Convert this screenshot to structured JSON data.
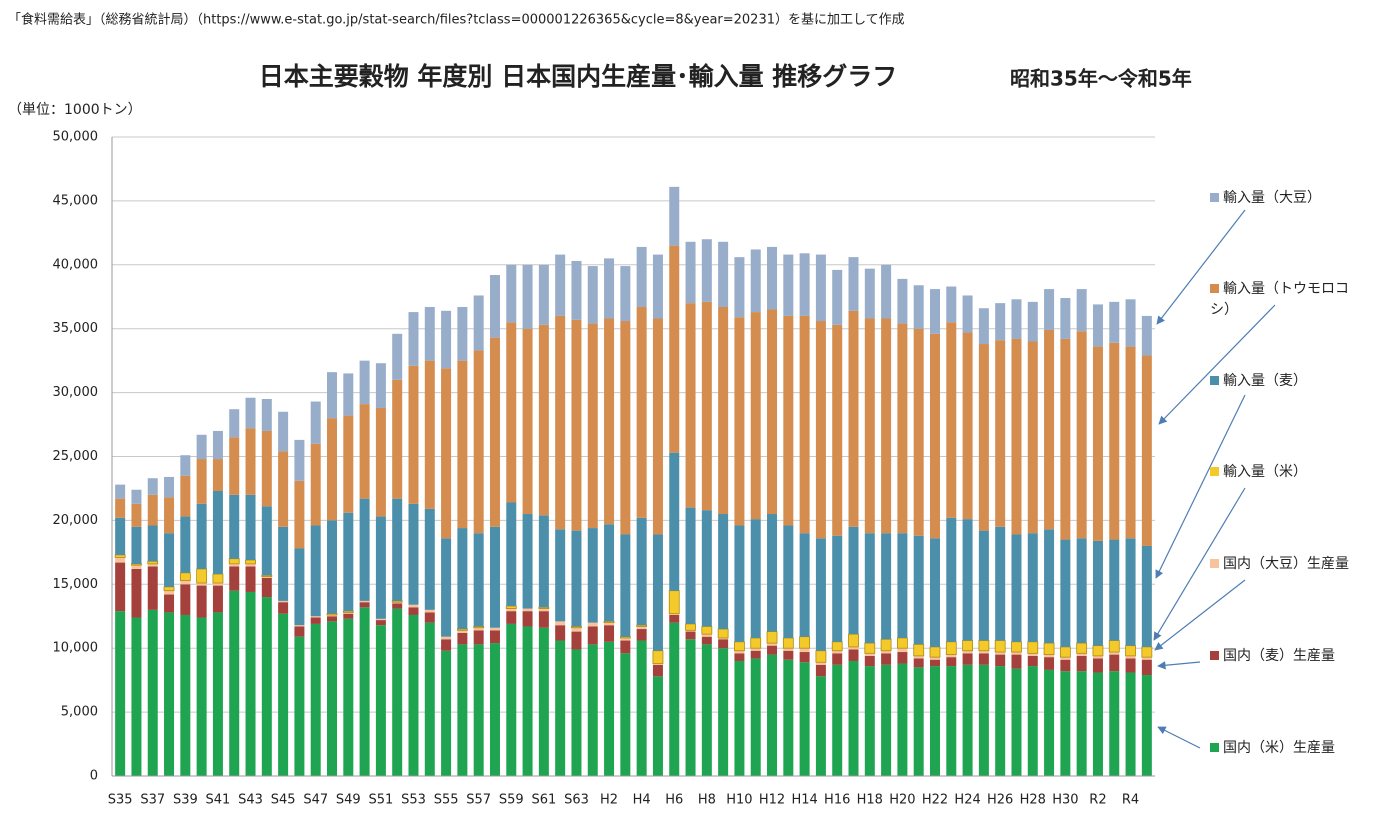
{
  "source": "「食料需給表」（総務省統計局）（https://www.e-stat.go.jp/stat-search/files?tclass=000001226365&cycle=8&year=20231）を基に加工して作成",
  "chart_data": {
    "type": "stacked-bar",
    "title": "日本主要穀物 年度別 日本国内生産量･輸入量 推移グラフ",
    "subtitle": "昭和35年～令和5年",
    "y_label": "（単位：1000トン）",
    "categories": [
      "S35",
      null,
      "S37",
      null,
      "S39",
      null,
      "S41",
      null,
      "S43",
      null,
      "S45",
      null,
      "S47",
      null,
      "S49",
      null,
      "S51",
      null,
      "S53",
      null,
      "S55",
      null,
      "S57",
      null,
      "S59",
      null,
      "S61",
      null,
      "S63",
      null,
      "H2",
      null,
      "H4",
      null,
      "H6",
      null,
      "H8",
      null,
      "H10",
      null,
      "H12",
      null,
      "H14",
      null,
      "H16",
      null,
      "H18",
      null,
      "H20",
      null,
      "H22",
      null,
      "H24",
      null,
      "H26",
      null,
      "H28",
      null,
      "H30",
      null,
      "R2",
      null,
      "R4",
      null
    ],
    "ylim": [
      0,
      50000
    ],
    "yticks": [
      0,
      {
        "value": 5000,
        "label": "5,000"
      },
      {
        "value": 10000,
        "label": "10,000"
      },
      {
        "value": 15000,
        "label": "15,000"
      },
      {
        "value": 20000,
        "label": "20,000"
      },
      {
        "value": 25000,
        "label": "25,000"
      },
      {
        "value": 30000,
        "label": "30,000"
      },
      {
        "value": 35000,
        "label": "35,000"
      },
      {
        "value": 40000,
        "label": "40,000"
      },
      {
        "value": 45000,
        "label": "45,000"
      },
      {
        "value": 50000,
        "label": "50,000"
      }
    ],
    "grid": true,
    "legend": "right",
    "series": [
      {
        "name": "国内（米）生産量",
        "color": "#1fa552",
        "values": [
          12900,
          12400,
          13000,
          12800,
          12600,
          12400,
          12800,
          14500,
          14400,
          14000,
          12700,
          10900,
          11900,
          12100,
          12300,
          13200,
          11800,
          13100,
          12600,
          12000,
          9800,
          10300,
          10300,
          10400,
          11900,
          11700,
          11600,
          10600,
          9900,
          10300,
          10500,
          9600,
          10600,
          7800,
          12000,
          10700,
          10300,
          10000,
          9000,
          9200,
          9500,
          9100,
          8900,
          7800,
          8700,
          9000,
          8600,
          8700,
          8800,
          8500,
          8600,
          8600,
          8700,
          8700,
          8600,
          8400,
          8600,
          8300,
          8200,
          8200,
          8100,
          8200,
          8100,
          7900
        ]
      },
      {
        "name": "国内（麦）生産量",
        "color": "#a5413d",
        "values": [
          3800,
          3800,
          3400,
          1400,
          2400,
          2500,
          2100,
          1900,
          2000,
          1500,
          900,
          800,
          500,
          400,
          400,
          400,
          400,
          400,
          600,
          800,
          900,
          900,
          1100,
          1000,
          1000,
          1200,
          1300,
          1200,
          1400,
          1400,
          1300,
          1000,
          900,
          900,
          600,
          600,
          600,
          700,
          600,
          600,
          700,
          700,
          800,
          900,
          900,
          900,
          800,
          900,
          900,
          700,
          500,
          700,
          900,
          900,
          900,
          1100,
          800,
          1000,
          900,
          1200,
          1100,
          1300,
          1100,
          1200
        ]
      },
      {
        "name": "国内（大豆）生産量",
        "color": "#f7c39d",
        "values": [
          400,
          300,
          200,
          300,
          300,
          200,
          200,
          200,
          200,
          100,
          100,
          100,
          100,
          100,
          100,
          100,
          100,
          100,
          200,
          200,
          200,
          200,
          200,
          200,
          200,
          200,
          200,
          300,
          300,
          300,
          200,
          200,
          200,
          100,
          100,
          100,
          200,
          100,
          200,
          200,
          200,
          200,
          300,
          200,
          200,
          200,
          200,
          200,
          300,
          200,
          200,
          200,
          200,
          200,
          200,
          200,
          200,
          200,
          200,
          200,
          200,
          200,
          200,
          200
        ]
      },
      {
        "name": "輸入量（米）",
        "color": "#f4c92a",
        "values": [
          200,
          100,
          200,
          300,
          600,
          1100,
          700,
          400,
          300,
          100,
          0,
          0,
          0,
          100,
          100,
          0,
          0,
          100,
          0,
          0,
          0,
          100,
          100,
          0,
          200,
          0,
          100,
          0,
          100,
          0,
          100,
          100,
          100,
          1000,
          1800,
          500,
          600,
          700,
          700,
          800,
          900,
          800,
          900,
          900,
          700,
          1000,
          800,
          900,
          800,
          900,
          800,
          1000,
          800,
          800,
          900,
          800,
          900,
          900,
          800,
          800,
          800,
          900,
          800,
          800
        ]
      },
      {
        "name": "輸入量（麦）",
        "color": "#4b8fab",
        "values": [
          2900,
          2900,
          2800,
          4200,
          4400,
          5100,
          6500,
          5000,
          5100,
          5400,
          5800,
          6000,
          7100,
          7300,
          7700,
          8000,
          8000,
          8000,
          7900,
          7900,
          7700,
          7900,
          7300,
          7900,
          8100,
          7400,
          7200,
          7200,
          7500,
          7400,
          7600,
          8000,
          8400,
          9100,
          10800,
          9100,
          9100,
          9000,
          9100,
          9300,
          9200,
          8800,
          8100,
          8800,
          8300,
          8400,
          8600,
          8300,
          8200,
          8500,
          8500,
          9700,
          9500,
          8600,
          8900,
          8400,
          8500,
          8900,
          8400,
          8200,
          8200,
          7900,
          8400,
          7900
        ]
      },
      {
        "name": "輸入量（トウモロコシ）",
        "color": "#d48d4e",
        "values": [
          1500,
          1800,
          2400,
          2800,
          3200,
          3500,
          2500,
          4500,
          5200,
          5900,
          5900,
          5300,
          6400,
          8000,
          7600,
          7400,
          8500,
          9300,
          10800,
          11600,
          13300,
          13100,
          14300,
          14800,
          14100,
          14500,
          14900,
          16700,
          16500,
          16000,
          16100,
          16700,
          16500,
          16900,
          16200,
          16000,
          16300,
          16200,
          16300,
          16200,
          16000,
          16400,
          17000,
          17000,
          16500,
          16900,
          16800,
          16800,
          16400,
          16200,
          16000,
          15300,
          14600,
          14600,
          14600,
          15300,
          15000,
          15600,
          15700,
          16200,
          15200,
          15400,
          15000,
          14900
        ]
      },
      {
        "name": "輸入量（大豆）",
        "color": "#98adc9",
        "values": [
          1100,
          1100,
          1300,
          1600,
          1600,
          1900,
          2200,
          2200,
          2400,
          2500,
          3100,
          3200,
          3300,
          3600,
          3300,
          3400,
          3500,
          3600,
          4200,
          4200,
          4500,
          4200,
          4300,
          4900,
          4500,
          5000,
          4700,
          4800,
          4600,
          4500,
          4700,
          4300,
          4700,
          5000,
          4600,
          4800,
          4900,
          5100,
          4700,
          4900,
          4900,
          4800,
          4900,
          5200,
          4300,
          4200,
          3900,
          4200,
          3500,
          3400,
          3500,
          2800,
          2900,
          2800,
          2900,
          3100,
          3100,
          3200,
          3200,
          3300,
          3300,
          3200,
          3700,
          3100
        ]
      }
    ]
  }
}
